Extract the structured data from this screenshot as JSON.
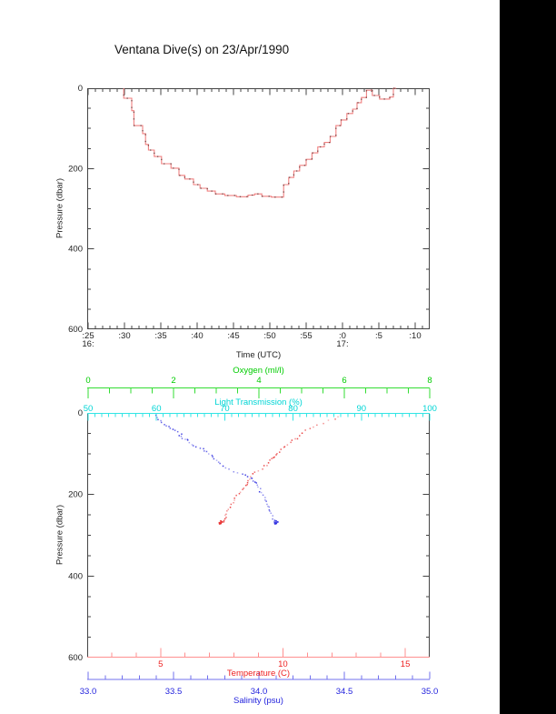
{
  "figure": {
    "title": "Ventana Dive(s) on 23/Apr/1990"
  },
  "chart_data": [
    {
      "type": "line",
      "title": "Ventana Dive(s) on 23/Apr/1990",
      "xlabel": "Time (UTC)",
      "ylabel": "Pressure (dbar)",
      "x_axis": {
        "tick_labels": [
          ":25",
          ":30",
          ":35",
          ":40",
          ":45",
          ":50",
          ":55",
          ":0",
          ":5",
          ":10"
        ],
        "tick_minutes": [
          25,
          30,
          35,
          40,
          45,
          50,
          55,
          60,
          65,
          70
        ],
        "hour_labels": [
          {
            "text": "16:",
            "at_minute": 25
          },
          {
            "text": "17:",
            "at_minute": 60
          }
        ],
        "minor_step_min": 1,
        "xlim_minutes": [
          24.9,
          72.1
        ]
      },
      "y_axis": {
        "tick_labels": [
          "0",
          "200",
          "400",
          "600"
        ],
        "tick_values": [
          0,
          200,
          400,
          600
        ],
        "minor_step": 50,
        "ylim": [
          0,
          600
        ],
        "inverted": true
      },
      "series": [
        {
          "name": "dive-depth-profile",
          "color": "#f08080",
          "marker_color": "#5b3434",
          "step_vertices_time_min_pressure_dbar": [
            [
              29.9,
              0
            ],
            [
              29.9,
              25
            ],
            [
              31.0,
              25
            ],
            [
              31.0,
              56
            ],
            [
              31.3,
              56
            ],
            [
              31.3,
              93
            ],
            [
              32.5,
              93
            ],
            [
              32.5,
              113
            ],
            [
              32.9,
              113
            ],
            [
              32.9,
              140
            ],
            [
              33.3,
              140
            ],
            [
              33.3,
              154
            ],
            [
              34.1,
              154
            ],
            [
              34.1,
              170
            ],
            [
              35.1,
              170
            ],
            [
              35.1,
              188
            ],
            [
              36.4,
              188
            ],
            [
              36.4,
              199
            ],
            [
              37.5,
              199
            ],
            [
              37.5,
              217
            ],
            [
              38.3,
              217
            ],
            [
              38.3,
              226
            ],
            [
              39.5,
              226
            ],
            [
              39.5,
              240
            ],
            [
              40.4,
              240
            ],
            [
              40.4,
              249
            ],
            [
              41.4,
              249
            ],
            [
              41.4,
              256
            ],
            [
              42.5,
              256
            ],
            [
              42.5,
              263
            ],
            [
              43.8,
              263
            ],
            [
              43.8,
              267
            ],
            [
              45.4,
              267
            ],
            [
              45.4,
              270
            ],
            [
              47.0,
              270
            ],
            [
              47.0,
              266
            ],
            [
              47.9,
              266
            ],
            [
              47.9,
              263
            ],
            [
              48.9,
              263
            ],
            [
              48.9,
              269
            ],
            [
              50.2,
              269
            ],
            [
              50.2,
              271
            ],
            [
              51.9,
              271
            ],
            [
              51.9,
              240
            ],
            [
              52.6,
              240
            ],
            [
              52.6,
              222
            ],
            [
              53.3,
              222
            ],
            [
              53.3,
              206
            ],
            [
              54.1,
              206
            ],
            [
              54.1,
              192
            ],
            [
              55.0,
              192
            ],
            [
              55.0,
              177
            ],
            [
              55.8,
              177
            ],
            [
              55.8,
              161
            ],
            [
              56.6,
              161
            ],
            [
              56.6,
              146
            ],
            [
              57.5,
              146
            ],
            [
              57.5,
              135
            ],
            [
              58.3,
              135
            ],
            [
              58.3,
              120
            ],
            [
              59.1,
              120
            ],
            [
              59.1,
              93
            ],
            [
              59.8,
              93
            ],
            [
              59.8,
              79
            ],
            [
              60.6,
              79
            ],
            [
              60.6,
              63
            ],
            [
              61.4,
              63
            ],
            [
              61.4,
              52
            ],
            [
              62.0,
              52
            ],
            [
              62.0,
              36
            ],
            [
              62.6,
              36
            ],
            [
              62.6,
              23
            ],
            [
              63.3,
              23
            ],
            [
              63.3,
              5
            ],
            [
              64.1,
              5
            ],
            [
              64.1,
              18
            ],
            [
              65.1,
              18
            ],
            [
              65.1,
              27
            ],
            [
              66.5,
              27
            ],
            [
              66.5,
              22
            ],
            [
              67.0,
              22
            ],
            [
              67.0,
              0
            ],
            [
              67.4,
              0
            ]
          ]
        }
      ]
    },
    {
      "type": "scatter",
      "ylabel": "Pressure (dbar)",
      "y_axis": {
        "tick_labels": [
          "0",
          "200",
          "400",
          "600"
        ],
        "tick_values": [
          0,
          200,
          400,
          600
        ],
        "minor_step": 50,
        "ylim": [
          0,
          600
        ],
        "inverted": true
      },
      "axes": {
        "oxygen": {
          "label": "Oxygen (ml/l)",
          "color": "#00cc00",
          "line_color": "#33dd33",
          "tick_labels": [
            "0",
            "2",
            "4",
            "6",
            "8"
          ],
          "tick_values": [
            0,
            2,
            4,
            6,
            8
          ],
          "lim": [
            0,
            8
          ],
          "minor_step": 0.5,
          "position": "top-outer"
        },
        "light": {
          "label": "Light Transmission (%)",
          "color": "#00d5d5",
          "line_color": "#33e5e5",
          "tick_labels": [
            "50",
            "60",
            "70",
            "80",
            "90",
            "100"
          ],
          "tick_values": [
            50,
            60,
            70,
            80,
            90,
            100
          ],
          "lim": [
            50,
            100
          ],
          "minor_step": 1,
          "position": "top"
        },
        "temperature": {
          "label": "Temperature (C)",
          "color": "#ee2222",
          "line_color": "#ff9090",
          "tick_labels": [
            "5",
            "10",
            "15"
          ],
          "tick_values": [
            5,
            10,
            15
          ],
          "lim": [
            2,
            16
          ],
          "minor_step": 1,
          "position": "bottom"
        },
        "salinity": {
          "label": "Salinity (psu)",
          "color": "#2222dd",
          "line_color": "#7070ee",
          "tick_labels": [
            "33.0",
            "33.5",
            "34.0",
            "34.5",
            "35.0"
          ],
          "tick_values": [
            33.0,
            33.5,
            34.0,
            34.5,
            35.0
          ],
          "lim": [
            33.0,
            35.0
          ],
          "minor_step": 0.1,
          "position": "bottom-outer"
        }
      },
      "series": [
        {
          "name": "temperature-profile",
          "axis": "temperature",
          "color": "#e83030",
          "points_pressure_value": [
            [
              12,
              12.3
            ],
            [
              20,
              11.9
            ],
            [
              29,
              11.4
            ],
            [
              38,
              11.1
            ],
            [
              51,
              10.8
            ],
            [
              62,
              10.55
            ],
            [
              69,
              10.4
            ],
            [
              78,
              10.15
            ],
            [
              85,
              10.0
            ],
            [
              95,
              9.85
            ],
            [
              103,
              9.7
            ],
            [
              110,
              9.6
            ],
            [
              118,
              9.5
            ],
            [
              127,
              9.35
            ],
            [
              136,
              9.2
            ],
            [
              147,
              8.8
            ],
            [
              156,
              8.7
            ],
            [
              165,
              8.6
            ],
            [
              175,
              8.5
            ],
            [
              185,
              8.4
            ],
            [
              195,
              8.25
            ],
            [
              203,
              8.1
            ],
            [
              214,
              8.0
            ],
            [
              225,
              7.9
            ],
            [
              237,
              7.8
            ],
            [
              248,
              7.7
            ],
            [
              256,
              7.65
            ],
            [
              263,
              7.6
            ],
            [
              268,
              7.5
            ],
            [
              270,
              7.45
            ]
          ]
        },
        {
          "name": "salinity-profile",
          "axis": "salinity",
          "color": "#3030e0",
          "points_pressure_value": [
            [
              7,
              33.39
            ],
            [
              15,
              33.41
            ],
            [
              24,
              33.43
            ],
            [
              31,
              33.46
            ],
            [
              36,
              33.48
            ],
            [
              45,
              33.51
            ],
            [
              52,
              33.55
            ],
            [
              58,
              33.54
            ],
            [
              64,
              33.57
            ],
            [
              69,
              33.58
            ],
            [
              76,
              33.61
            ],
            [
              82,
              33.63
            ],
            [
              90,
              33.67
            ],
            [
              97,
              33.69
            ],
            [
              105,
              33.72
            ],
            [
              112,
              33.74
            ],
            [
              120,
              33.76
            ],
            [
              130,
              33.79
            ],
            [
              140,
              33.83
            ],
            [
              148,
              33.88
            ],
            [
              152,
              33.92
            ],
            [
              158,
              33.95
            ],
            [
              166,
              33.97
            ],
            [
              174,
              33.99
            ],
            [
              183,
              34.0
            ],
            [
              192,
              34.01
            ],
            [
              202,
              34.03
            ],
            [
              212,
              34.04
            ],
            [
              222,
              34.05
            ],
            [
              232,
              34.06
            ],
            [
              243,
              34.07
            ],
            [
              253,
              34.08
            ],
            [
              263,
              34.09
            ],
            [
              270,
              34.1
            ]
          ]
        }
      ]
    }
  ],
  "scan": {
    "right_bar_color": "#000000"
  }
}
